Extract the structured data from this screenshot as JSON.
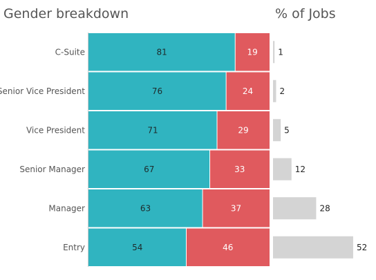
{
  "titles": {
    "left": "Gender breakdown",
    "right": "% of Jobs"
  },
  "colors": {
    "male": "#30b4c0",
    "female": "#e05a5e",
    "jobs": "#d4d4d4",
    "axis": "#cccccc"
  },
  "chart_data": [
    {
      "type": "bar",
      "stacked": true,
      "orientation": "horizontal",
      "title": "Gender breakdown",
      "categories": [
        "C-Suite",
        "Senior Vice President",
        "Vice President",
        "Senior Manager",
        "Manager",
        "Entry"
      ],
      "series": [
        {
          "values": [
            81,
            76,
            71,
            67,
            63,
            54
          ]
        },
        {
          "values": [
            19,
            24,
            29,
            33,
            37,
            46
          ]
        }
      ],
      "xlim": [
        0,
        100
      ]
    },
    {
      "type": "bar",
      "orientation": "horizontal",
      "title": "% of Jobs",
      "categories": [
        "C-Suite",
        "Senior Vice President",
        "Vice President",
        "Senior Manager",
        "Manager",
        "Entry"
      ],
      "values": [
        1,
        2,
        5,
        12,
        28,
        52
      ]
    }
  ]
}
